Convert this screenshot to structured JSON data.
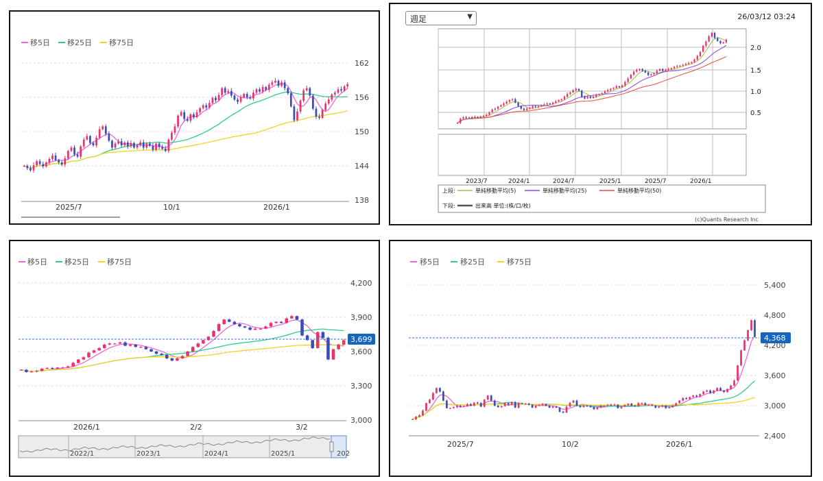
{
  "legend": {
    "ma5": "移5日",
    "ma25": "移25日",
    "ma75": "移75日"
  },
  "colors": {
    "up": "#e8336d",
    "down": "#3b4cb8",
    "ma5": "#ee66dd",
    "ma25": "#2ecc8a",
    "ma75": "#f2d422",
    "weekly_ma5": "#a0c040",
    "weekly_ma25": "#8e44ec",
    "weekly_ma50": "#e74c3c",
    "price_tag": "#1565c0"
  },
  "panel1": {
    "yticks": [
      "162",
      "156",
      "150",
      "144",
      "138"
    ],
    "xticks": [
      "2025/7",
      "10/1",
      "2026/1"
    ]
  },
  "panel2": {
    "select_value": "週足",
    "timestamp": "26/03/12 03:24",
    "yticks": [
      "2.0",
      "1.5",
      "1.0",
      "0.5"
    ],
    "xticks": [
      "2023/7",
      "2024/1",
      "2024/7",
      "2025/1",
      "2025/7",
      "2026/1"
    ],
    "upper_label": "上段:",
    "lower_label": "下段:",
    "ma_labels": [
      "単純移動平均(5)",
      "単純移動平均(25)",
      "単純移動平均(50)"
    ],
    "volume_label": "出来高 単位:(株/口/枚)",
    "copyright": "(c)Quants Research Inc"
  },
  "panel3": {
    "yticks": [
      "4,200",
      "3,900",
      "3,600",
      "3,300",
      "3,000"
    ],
    "xticks": [
      "2026/1",
      "2/2",
      "3/2"
    ],
    "price_tag": "3,699",
    "nav_labels": [
      "2022/1",
      "2023/1",
      "2024/1",
      "2025/1",
      "202"
    ]
  },
  "panel4": {
    "yticks": [
      "5,400",
      "4,800",
      "4,200",
      "3,600",
      "3,000",
      "2,400"
    ],
    "xticks": [
      "2025/7",
      "10/2",
      "2026/1"
    ],
    "price_tag": "4,368"
  },
  "chart_data": [
    {
      "type": "candlestick",
      "ylim": [
        138,
        164
      ],
      "ma": [
        "移5日",
        "移25日",
        "移75日"
      ],
      "close": [
        144,
        143.6,
        143.2,
        144.1,
        144.8,
        144.3,
        143.9,
        144.6,
        145.2,
        145.8,
        145.0,
        144.6,
        144.2,
        145.3,
        146.6,
        147.2,
        146.0,
        145.6,
        147.4,
        148.6,
        149.2,
        148.0,
        147.6,
        148.9,
        150.4,
        150.9,
        149.6,
        148.4,
        147.2,
        147.9,
        148.3,
        147.6,
        148.1,
        147.4,
        148.0,
        147.2,
        147.6,
        148.1,
        147.2,
        147.9,
        147.5,
        146.8,
        147.9,
        147.3,
        147.0,
        146.6,
        148.6,
        149.8,
        150.9,
        152.8,
        153.4,
        152.2,
        151.9,
        153.0,
        152.5,
        153.4,
        154.1,
        154.6,
        154.2,
        155.0,
        155.9,
        155.5,
        156.4,
        157.6,
        156.8,
        157.1,
        156.3,
        155.6,
        155.2,
        156.0,
        156.6,
        156.0,
        155.8,
        156.8,
        157.4,
        157.0,
        157.8,
        157.3,
        158.2,
        158.6,
        158.9,
        158.0,
        158.6,
        157.6,
        156.7,
        154.4,
        152.0,
        153.5,
        155.4,
        157.2,
        157.6,
        156.3,
        154.0,
        152.6,
        152.4,
        153.8,
        154.9,
        155.6,
        156.5,
        156.8,
        157.4,
        157.2,
        157.9,
        158.3
      ]
    },
    {
      "type": "candlestick",
      "ylim": [
        0.2,
        2.4
      ],
      "ma": [
        "単純移動平均(5)",
        "単純移動平均(25)",
        "単純移動平均(50)"
      ],
      "close": [
        0.25,
        0.35,
        0.38,
        0.37,
        0.38,
        0.37,
        0.39,
        0.38,
        0.4,
        0.41,
        0.44,
        0.5,
        0.56,
        0.58,
        0.63,
        0.66,
        0.7,
        0.74,
        0.78,
        0.8,
        0.72,
        0.64,
        0.58,
        0.55,
        0.58,
        0.6,
        0.64,
        0.62,
        0.64,
        0.66,
        0.68,
        0.7,
        0.69,
        0.72,
        0.75,
        0.78,
        0.8,
        0.86,
        0.92,
        0.96,
        1.01,
        1.04,
        1.0,
        0.86,
        0.82,
        0.86,
        0.83,
        0.86,
        0.9,
        0.92,
        0.94,
        0.98,
        1.01,
        1.04,
        1.06,
        1.1,
        1.08,
        1.12,
        1.2,
        1.28,
        1.37,
        1.44,
        1.48,
        1.5,
        1.46,
        1.42,
        1.36,
        1.38,
        1.4,
        1.46,
        1.5,
        1.46,
        1.48,
        1.5,
        1.52,
        1.55,
        1.57,
        1.58,
        1.6,
        1.62,
        1.64,
        1.66,
        1.72,
        1.8,
        1.9,
        2.04,
        2.14,
        2.26,
        2.34,
        2.22,
        2.15,
        2.1,
        2.12,
        2.18
      ],
      "volume": []
    },
    {
      "type": "candlestick",
      "ylim": [
        3000,
        4200
      ],
      "ma": [
        "移5日",
        "移25日",
        "移75日"
      ],
      "price_tag": 3699,
      "close": [
        3440,
        3420,
        3425,
        3430,
        3450,
        3455,
        3450,
        3460,
        3460,
        3470,
        3500,
        3530,
        3550,
        3590,
        3610,
        3630,
        3660,
        3670,
        3670,
        3680,
        3650,
        3660,
        3640,
        3640,
        3620,
        3600,
        3580,
        3570,
        3540,
        3520,
        3540,
        3560,
        3600,
        3640,
        3670,
        3700,
        3730,
        3780,
        3840,
        3880,
        3860,
        3840,
        3820,
        3810,
        3790,
        3800,
        3800,
        3820,
        3850,
        3860,
        3850,
        3890,
        3910,
        3880,
        3740,
        3700,
        3630,
        3770,
        3720,
        3530,
        3620,
        3660,
        3699
      ]
    },
    {
      "type": "candlestick",
      "ylim": [
        2400,
        5400
      ],
      "ma": [
        "移5日",
        "移25日",
        "移75日"
      ],
      "price_tag": 4368,
      "close": [
        2730,
        2780,
        2810,
        2900,
        3050,
        3120,
        3250,
        3350,
        3280,
        3100,
        2950,
        2950,
        2970,
        3000,
        2980,
        2990,
        3030,
        3000,
        3060,
        3050,
        2980,
        3120,
        3200,
        3100,
        3000,
        2970,
        2990,
        3050,
        3020,
        3070,
        2960,
        3050,
        3040,
        3040,
        3020,
        2960,
        3000,
        3010,
        3030,
        3000,
        2960,
        2980,
        2960,
        2880,
        2860,
        2980,
        3060,
        3100,
        3000,
        2970,
        3000,
        2990,
        2970,
        2930,
        2960,
        3000,
        3000,
        3020,
        3010,
        3020,
        2950,
        2980,
        3010,
        3040,
        3000,
        2990,
        3050,
        3050,
        3010,
        3010,
        3000,
        2960,
        2980,
        3000,
        2950,
        2970,
        3000,
        3050,
        3100,
        3150,
        3130,
        3170,
        3200,
        3180,
        3230,
        3280,
        3300,
        3250,
        3300,
        3350,
        3300,
        3270,
        3330,
        3400,
        3500,
        3800,
        4100,
        4300,
        4500,
        4700,
        4368
      ]
    }
  ]
}
